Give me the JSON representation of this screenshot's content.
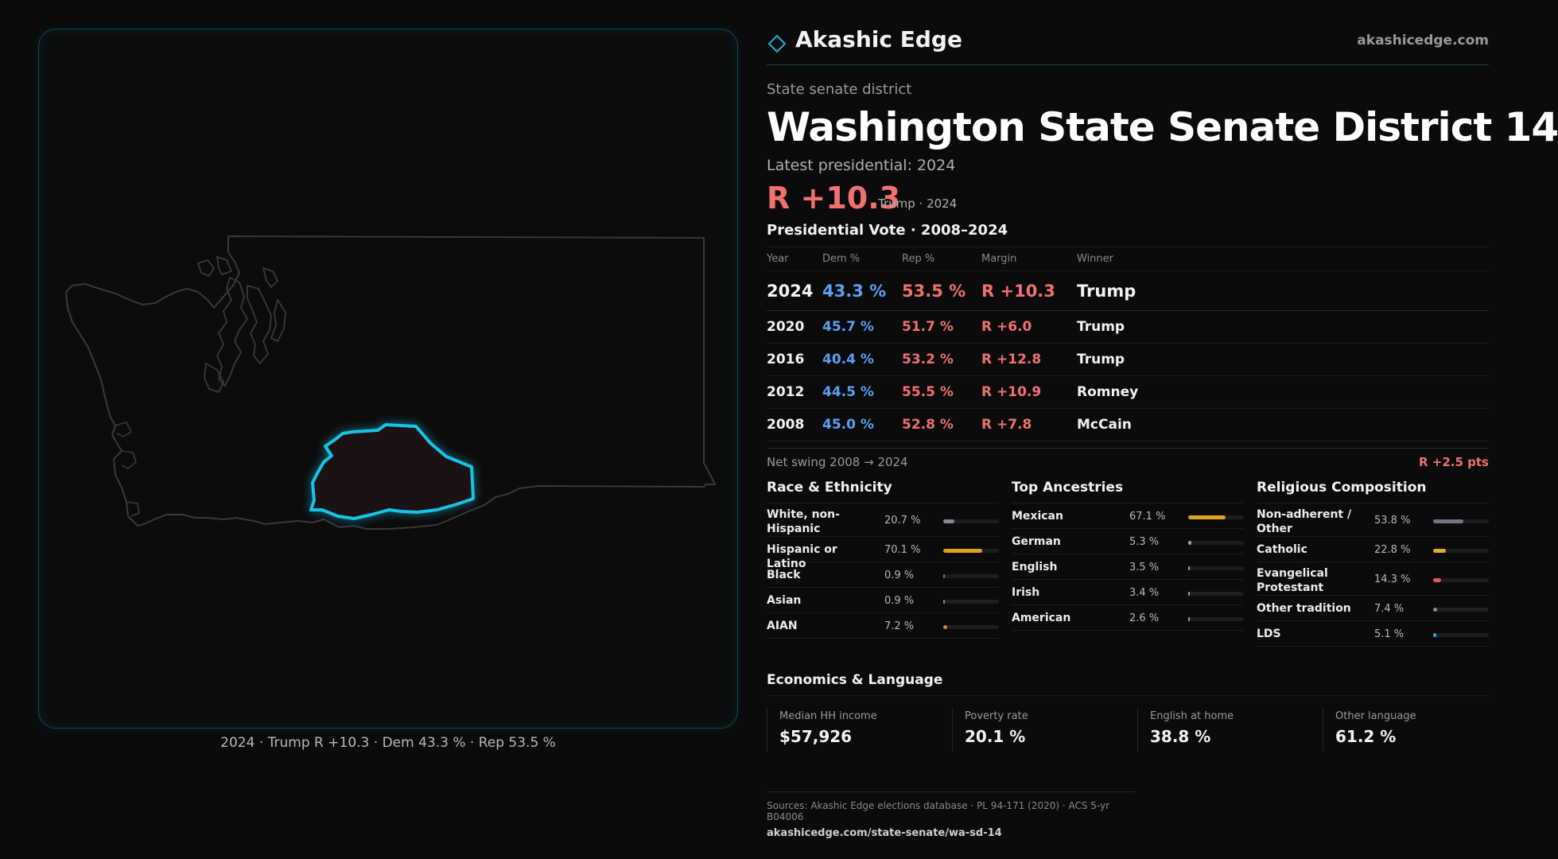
{
  "map": {
    "caption": "2024 · Trump R +10.3 · Dem 43.3 % · Rep 53.5 %",
    "district_outline_color": "#18c4e6",
    "district_fill_color": "#1c1113"
  },
  "header": {
    "brand_name": "Akashic Edge",
    "brand_url": "akashicedge.com",
    "brand_color": "#17b3cf"
  },
  "district": {
    "kind": "State senate district",
    "title": "Washington State Senate District 14",
    "latest_label": "Latest presidential: 2024",
    "margin": "R +10.3",
    "margin_detail": "Trump · 2024"
  },
  "presidential": {
    "title": "Presidential Vote · 2008–2024",
    "headers": {
      "year": "Year",
      "dem": "Dem %",
      "rep": "Rep %",
      "margin": "Margin",
      "winner": "Winner"
    },
    "rows": [
      {
        "year": "2024",
        "dem": "43.3 %",
        "rep": "53.5 %",
        "margin": "R +10.3",
        "winner": "Trump"
      },
      {
        "year": "2020",
        "dem": "45.7 %",
        "rep": "51.7 %",
        "margin": "R +6.0",
        "winner": "Trump"
      },
      {
        "year": "2016",
        "dem": "40.4 %",
        "rep": "53.2 %",
        "margin": "R +12.8",
        "winner": "Trump"
      },
      {
        "year": "2012",
        "dem": "44.5 %",
        "rep": "55.5 %",
        "margin": "R +10.9",
        "winner": "Romney"
      },
      {
        "year": "2008",
        "dem": "45.0 %",
        "rep": "52.8 %",
        "margin": "R +7.8",
        "winner": "McCain"
      }
    ],
    "swing_label": "Net swing 2008 → 2024",
    "swing_value": "R +2.5 pts"
  },
  "race": {
    "title": "Race & Ethnicity",
    "items": [
      {
        "label": "White, non-Hispanic",
        "value": "20.7 %",
        "pct": 20.7,
        "color": "#7d8a9c"
      },
      {
        "label": "Hispanic or Latino",
        "value": "70.1 %",
        "pct": 70.1,
        "color": "#e0a020"
      },
      {
        "label": "Black",
        "value": "0.9 %",
        "pct": 0.9,
        "color": "#7a6bd0"
      },
      {
        "label": "Asian",
        "value": "0.9 %",
        "pct": 0.9,
        "color": "#3fb68b"
      },
      {
        "label": "AIAN",
        "value": "7.2 %",
        "pct": 7.2,
        "color": "#d9822b"
      }
    ]
  },
  "ancestry": {
    "title": "Top Ancestries",
    "items": [
      {
        "label": "Mexican",
        "value": "67.1 %",
        "pct": 67.1,
        "color": "#e0a020"
      },
      {
        "label": "German",
        "value": "5.3 %",
        "pct": 5.3,
        "color": "#9aa3ad"
      },
      {
        "label": "English",
        "value": "3.5 %",
        "pct": 3.5,
        "color": "#9aa3ad"
      },
      {
        "label": "Irish",
        "value": "3.4 %",
        "pct": 3.4,
        "color": "#9aa3ad"
      },
      {
        "label": "American",
        "value": "2.6 %",
        "pct": 2.6,
        "color": "#9aa3ad"
      }
    ]
  },
  "religion": {
    "title": "Religious Composition",
    "items": [
      {
        "label": "Non-adherent / Other",
        "value": "53.8 %",
        "pct": 53.8,
        "color": "#6f7784"
      },
      {
        "label": "Catholic",
        "value": "22.8 %",
        "pct": 22.8,
        "color": "#e0b020"
      },
      {
        "label": "Evangelical Protestant",
        "value": "14.3 %",
        "pct": 14.3,
        "color": "#e05a5a"
      },
      {
        "label": "Other tradition",
        "value": "7.4 %",
        "pct": 7.4,
        "color": "#8a8a8a"
      },
      {
        "label": "LDS",
        "value": "5.1 %",
        "pct": 5.1,
        "color": "#17b3cf"
      }
    ]
  },
  "economics": {
    "title": "Economics & Language",
    "items": [
      {
        "label": "Median HH income",
        "value": "$57,926"
      },
      {
        "label": "Poverty rate",
        "value": "20.1 %"
      },
      {
        "label": "English at home",
        "value": "38.8 %"
      },
      {
        "label": "Other language",
        "value": "61.2 %"
      }
    ]
  },
  "sources": {
    "line1": "Sources: Akashic Edge elections database · PL 94-171 (2020) · ACS 5-yr B04006",
    "line2": "akashicedge.com/state-senate/wa-sd-14"
  }
}
